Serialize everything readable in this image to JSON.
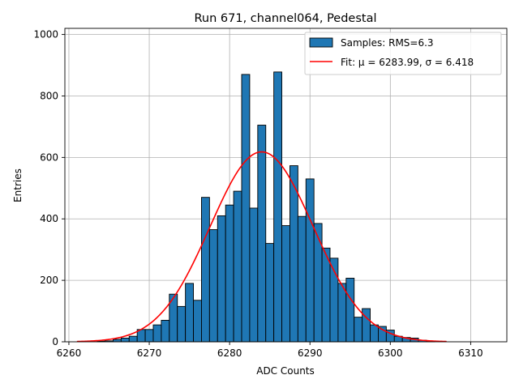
{
  "chart_data": {
    "type": "bar",
    "title": "Run 671, channel064, Pedestal",
    "xlabel": "ADC Counts",
    "ylabel": "Entries",
    "xlim": [
      6259.5,
      6314.5
    ],
    "ylim": [
      0,
      1020
    ],
    "xticks": [
      6260,
      6270,
      6280,
      6290,
      6300,
      6310
    ],
    "yticks": [
      0,
      200,
      400,
      600,
      800,
      1000
    ],
    "grid": true,
    "legend_position": "top-right",
    "bin_width": 1,
    "bins": [
      {
        "x": 6264,
        "y": 2
      },
      {
        "x": 6265,
        "y": 3
      },
      {
        "x": 6266,
        "y": 8
      },
      {
        "x": 6267,
        "y": 12
      },
      {
        "x": 6268,
        "y": 18
      },
      {
        "x": 6269,
        "y": 40
      },
      {
        "x": 6270,
        "y": 40
      },
      {
        "x": 6271,
        "y": 55
      },
      {
        "x": 6272,
        "y": 70
      },
      {
        "x": 6273,
        "y": 155
      },
      {
        "x": 6274,
        "y": 115
      },
      {
        "x": 6275,
        "y": 190
      },
      {
        "x": 6276,
        "y": 135
      },
      {
        "x": 6277,
        "y": 470
      },
      {
        "x": 6278,
        "y": 365
      },
      {
        "x": 6279,
        "y": 410
      },
      {
        "x": 6280,
        "y": 445
      },
      {
        "x": 6281,
        "y": 490
      },
      {
        "x": 6282,
        "y": 870
      },
      {
        "x": 6283,
        "y": 435
      },
      {
        "x": 6284,
        "y": 705
      },
      {
        "x": 6285,
        "y": 320
      },
      {
        "x": 6286,
        "y": 878
      },
      {
        "x": 6287,
        "y": 378
      },
      {
        "x": 6288,
        "y": 573
      },
      {
        "x": 6289,
        "y": 408
      },
      {
        "x": 6290,
        "y": 530
      },
      {
        "x": 6291,
        "y": 385
      },
      {
        "x": 6292,
        "y": 305
      },
      {
        "x": 6293,
        "y": 272
      },
      {
        "x": 6294,
        "y": 190
      },
      {
        "x": 6295,
        "y": 207
      },
      {
        "x": 6296,
        "y": 80
      },
      {
        "x": 6297,
        "y": 108
      },
      {
        "x": 6298,
        "y": 55
      },
      {
        "x": 6299,
        "y": 50
      },
      {
        "x": 6300,
        "y": 38
      },
      {
        "x": 6301,
        "y": 18
      },
      {
        "x": 6302,
        "y": 14
      },
      {
        "x": 6303,
        "y": 12
      },
      {
        "x": 6304,
        "y": 5
      },
      {
        "x": 6305,
        "y": 2
      }
    ],
    "series": [
      {
        "name": "Samples: RMS=6.3",
        "kind": "histogram",
        "color": "#1f77b4",
        "edgecolor": "#000000"
      },
      {
        "name": "Fit: μ = 6283.99, σ = 6.418",
        "kind": "gaussian-fit",
        "color": "#ff0000",
        "mu": 6283.99,
        "sigma": 6.418,
        "amplitude": 618,
        "x_range": [
          6261,
          6307
        ]
      }
    ]
  }
}
